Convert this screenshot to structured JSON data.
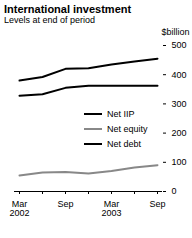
{
  "chart_data": {
    "type": "line",
    "title": "International investment",
    "subtitle": "Levels at end of period",
    "y_label": "$billion",
    "categories": [
      "Mar 2002",
      null,
      "Sep",
      null,
      "Mar 2003",
      null,
      "Sep"
    ],
    "series": [
      {
        "name": "Net IIP",
        "color": "#000000",
        "values": [
          380,
          392,
          420,
          422,
          435,
          445,
          455
        ]
      },
      {
        "name": "Net equity",
        "color": "#888888",
        "values": [
          55,
          65,
          67,
          62,
          70,
          82,
          90
        ]
      },
      {
        "name": "Net debt",
        "color": "#000000",
        "values": [
          328,
          333,
          355,
          362,
          362,
          362,
          362
        ]
      }
    ],
    "ylim": [
      0,
      500
    ],
    "yticks": [
      0,
      100,
      200,
      300,
      400,
      500
    ],
    "grid": false,
    "legend": "right"
  }
}
